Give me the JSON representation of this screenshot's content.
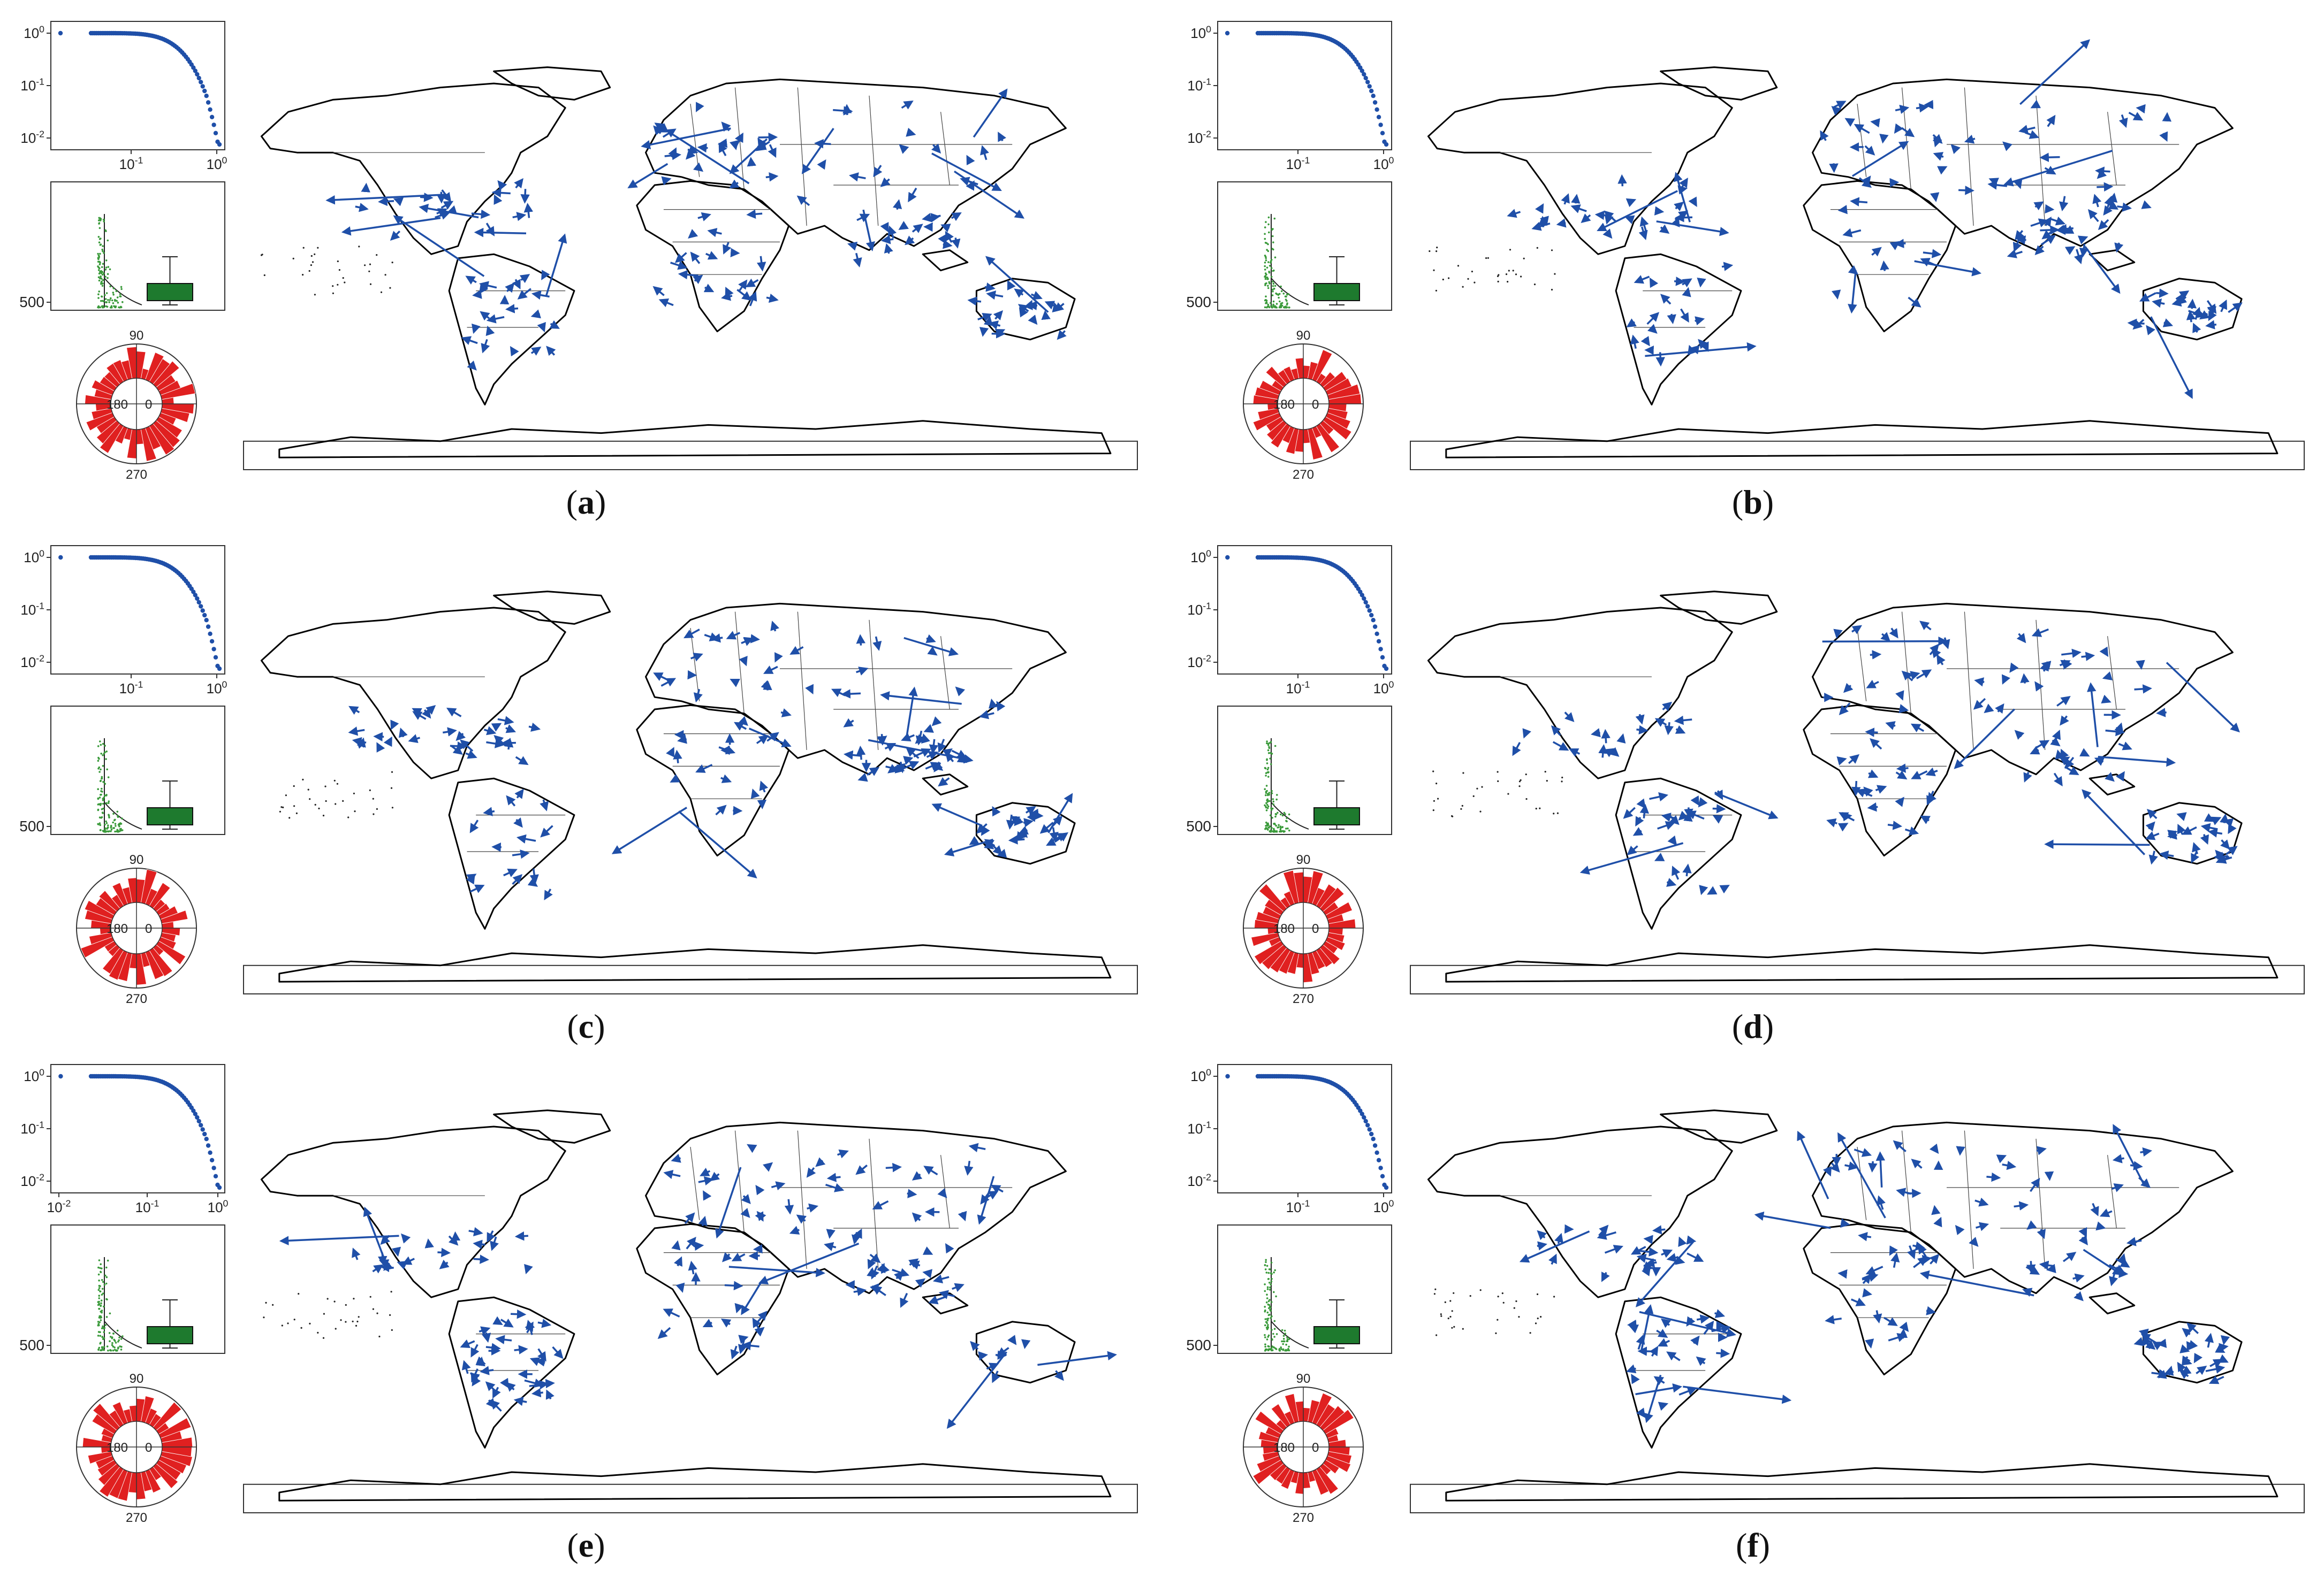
{
  "figure": {
    "panels": [
      {
        "label": "a",
        "rank_plot": {
          "y_ticks": [
            "10^0",
            "10^-1",
            "10^-2"
          ],
          "x_ticks": [
            "10^-1",
            "10^0"
          ]
        },
        "distribution": {
          "y_tick": "500"
        },
        "rose": {
          "angle_labels": [
            "90",
            "180",
            "0",
            "270"
          ]
        },
        "arrow_seed": 11
      },
      {
        "label": "b",
        "rank_plot": {
          "y_ticks": [
            "10^0",
            "10^-1",
            "10^-2"
          ],
          "x_ticks": [
            "10^-1",
            "10^0"
          ]
        },
        "distribution": {
          "y_tick": "500"
        },
        "rose": {
          "angle_labels": [
            "90",
            "180",
            "0",
            "270"
          ]
        },
        "arrow_seed": 23
      },
      {
        "label": "c",
        "rank_plot": {
          "y_ticks": [
            "10^0",
            "10^-1",
            "10^-2"
          ],
          "x_ticks": [
            "10^-1",
            "10^0"
          ]
        },
        "distribution": {
          "y_tick": "500"
        },
        "rose": {
          "angle_labels": [
            "90",
            "180",
            "0",
            "270"
          ]
        },
        "arrow_seed": 37
      },
      {
        "label": "d",
        "rank_plot": {
          "y_ticks": [
            "10^0",
            "10^-1",
            "10^-2"
          ],
          "x_ticks": [
            "10^-1",
            "10^0"
          ]
        },
        "distribution": {
          "y_tick": "500"
        },
        "rose": {
          "angle_labels": [
            "90",
            "180",
            "0",
            "270"
          ]
        },
        "arrow_seed": 41
      },
      {
        "label": "e",
        "rank_plot": {
          "y_ticks": [
            "10^0",
            "10^-1",
            "10^-2"
          ],
          "x_ticks": [
            "10^-2",
            "10^-1",
            "10^0"
          ]
        },
        "distribution": {
          "y_tick": "500"
        },
        "rose": {
          "angle_labels": [
            "90",
            "180",
            "0",
            "270"
          ]
        },
        "arrow_seed": 53
      },
      {
        "label": "f",
        "rank_plot": {
          "y_ticks": [
            "10^0",
            "10^-1",
            "10^-2"
          ],
          "x_ticks": [
            "10^-1",
            "10^0"
          ]
        },
        "distribution": {
          "y_tick": "500"
        },
        "rose": {
          "angle_labels": [
            "90",
            "180",
            "0",
            "270"
          ]
        },
        "arrow_seed": 67
      }
    ],
    "colors": {
      "rank_points": "#1f4fa8",
      "arrows": "#1f4fa8",
      "scatter_points": "#3a9a3a",
      "box_fill": "#1e7a2e",
      "rose_bars": "#e02020",
      "map_lines": "#000000"
    }
  }
}
